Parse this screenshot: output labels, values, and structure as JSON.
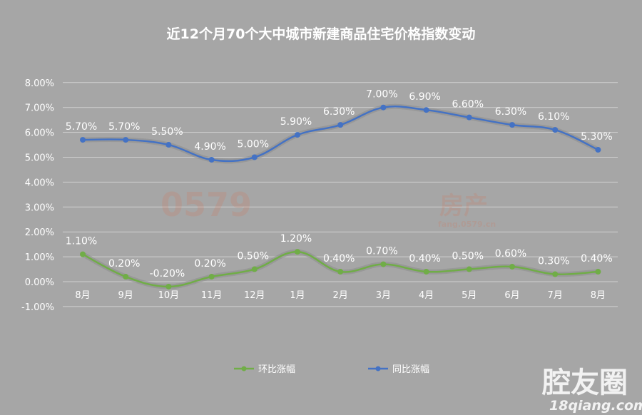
{
  "chart_data": {
    "type": "line",
    "title": "近12个月70个大中城市新建商品住宅价格指数变动",
    "categories": [
      "8月",
      "9月",
      "10月",
      "11月",
      "12月",
      "1月",
      "2月",
      "3月",
      "4月",
      "5月",
      "6月",
      "7月",
      "8月"
    ],
    "series": [
      {
        "name": "环比涨幅",
        "color": "#70ad47",
        "values": [
          1.1,
          0.2,
          -0.2,
          0.2,
          0.5,
          1.2,
          0.4,
          0.7,
          0.4,
          0.5,
          0.6,
          0.3,
          0.4
        ],
        "labels": [
          "1.10%",
          "0.20%",
          "-0.20%",
          "0.20%",
          "0.50%",
          "1.20%",
          "0.40%",
          "0.70%",
          "0.40%",
          "0.50%",
          "0.60%",
          "0.30%",
          "0.40%"
        ]
      },
      {
        "name": "同比涨幅",
        "color": "#4472c4",
        "values": [
          5.7,
          5.7,
          5.5,
          4.9,
          5.0,
          5.9,
          6.3,
          7.0,
          6.9,
          6.6,
          6.3,
          6.1,
          5.3
        ],
        "labels": [
          "5.70%",
          "5.70%",
          "5.50%",
          "4.90%",
          "5.00%",
          "5.90%",
          "6.30%",
          "7.00%",
          "6.90%",
          "6.60%",
          "6.30%",
          "6.10%",
          "5.30%"
        ]
      }
    ],
    "ylim": [
      -1,
      8
    ],
    "yticks": [
      "-1.00%",
      "0.00%",
      "1.00%",
      "2.00%",
      "3.00%",
      "4.00%",
      "5.00%",
      "6.00%",
      "7.00%",
      "8.00%"
    ],
    "grid": true,
    "legend": "bottom"
  },
  "watermark": {
    "text": "0579",
    "subtext": "房产",
    "url": "fang.0579.cn"
  },
  "brand": {
    "name": "腔友圈",
    "url": "18qiang.com"
  }
}
